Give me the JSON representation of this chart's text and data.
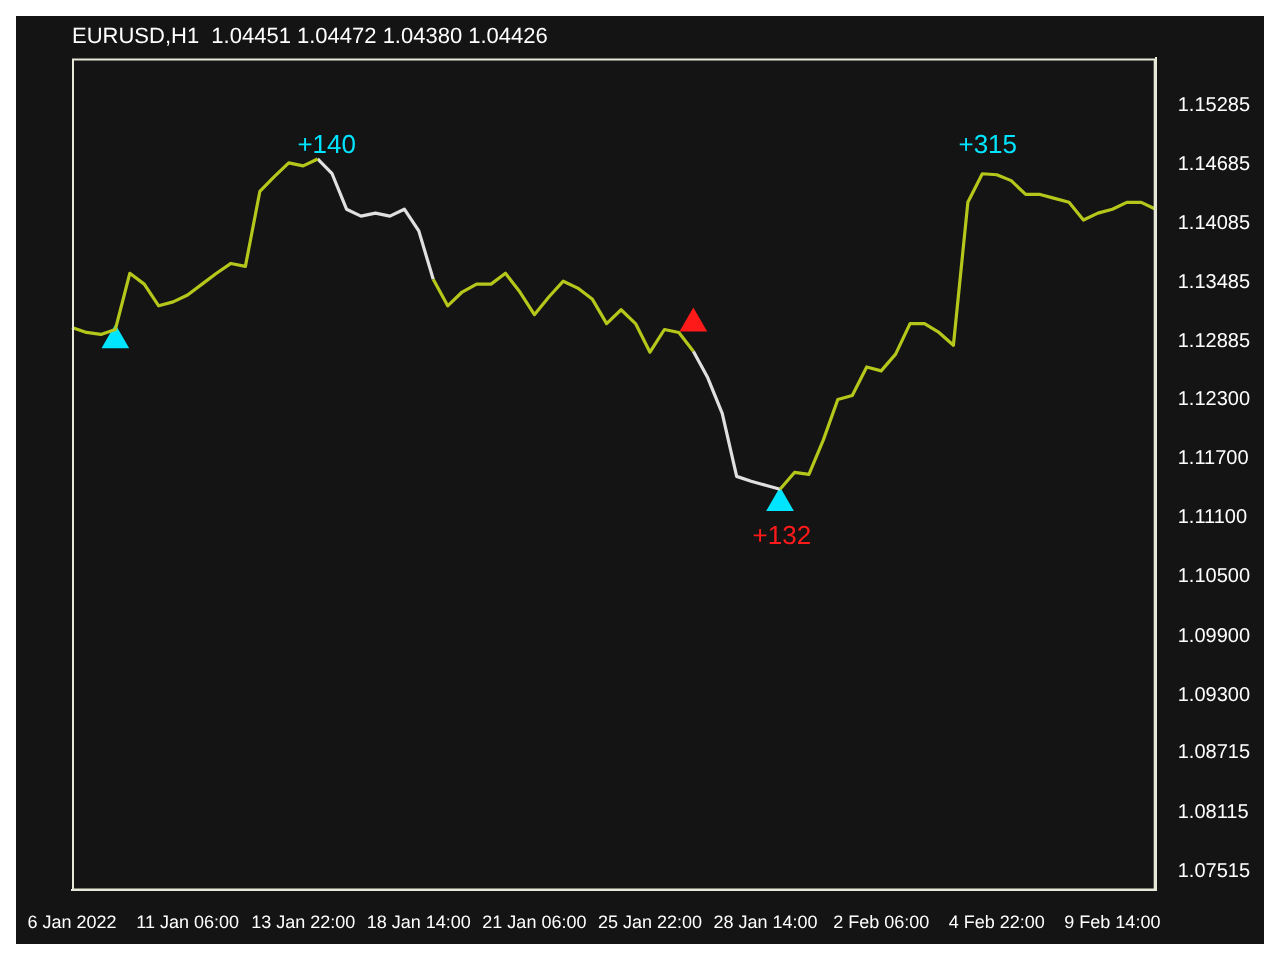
{
  "chart_data": {
    "type": "line",
    "title": "EURUSD,H1  1.04451 1.04472 1.04380 1.04426",
    "categories": [
      "6 Jan 2022",
      null,
      null,
      null,
      null,
      null,
      null,
      null,
      "11 Jan 06:00",
      null,
      null,
      null,
      null,
      null,
      null,
      null,
      "13 Jan 22:00",
      null,
      null,
      null,
      null,
      null,
      null,
      null,
      "18 Jan 14:00",
      null,
      null,
      null,
      null,
      null,
      null,
      null,
      "21 Jan 06:00",
      null,
      null,
      null,
      null,
      null,
      null,
      null,
      "25 Jan 22:00",
      null,
      null,
      null,
      null,
      null,
      null,
      null,
      "28 Jan 14:00",
      null,
      null,
      null,
      null,
      null,
      null,
      null,
      "2 Feb 06:00",
      null,
      null,
      null,
      null,
      null,
      null,
      null,
      "4 Feb 22:00",
      null,
      null,
      null,
      null,
      null,
      null,
      null,
      "9 Feb 14:00",
      null,
      null,
      null
    ],
    "series": [
      {
        "color": "#b5c71a",
        "values": [
          1.1303,
          1.1298,
          1.1296,
          1.1301,
          1.1358,
          1.1347,
          1.1325,
          1.1329,
          1.1336,
          1.1347,
          1.1358,
          1.1368,
          1.1365,
          1.1441,
          1.1456,
          1.147,
          1.1467,
          1.1474,
          null,
          null,
          null,
          null,
          null,
          null,
          null,
          1.1352,
          1.1325,
          1.1339,
          1.1347,
          1.1347,
          1.1358,
          1.1339,
          1.1316,
          1.1334,
          1.135,
          1.1343,
          1.1332,
          1.1307,
          1.1321,
          1.1307,
          1.1278,
          1.1301,
          1.1298,
          1.1279,
          null,
          null,
          null,
          null,
          null,
          1.1139,
          1.1156,
          1.1154,
          1.1189,
          1.123,
          1.1234,
          1.1263,
          1.1259,
          1.1276,
          1.1307,
          1.1307,
          1.1298,
          1.1285,
          1.143,
          1.1459,
          1.1458,
          1.1452,
          1.1438,
          1.1438,
          1.1434,
          1.143,
          1.1412,
          1.1419,
          1.1423,
          1.143,
          1.143,
          1.1423
        ]
      },
      {
        "color": "#e0e0e0",
        "values": [
          null,
          null,
          null,
          null,
          null,
          null,
          null,
          null,
          null,
          null,
          null,
          null,
          null,
          null,
          null,
          null,
          null,
          1.1474,
          1.1459,
          1.1423,
          1.1416,
          1.1419,
          1.1416,
          1.1423,
          1.1401,
          1.1352,
          null,
          null,
          null,
          null,
          null,
          null,
          null,
          null,
          null,
          null,
          null,
          null,
          null,
          null,
          null,
          null,
          null,
          1.1279,
          1.1252,
          1.1216,
          1.1152,
          1.1147,
          1.1143,
          1.1139,
          null,
          null,
          null,
          null,
          null,
          null,
          null,
          null,
          null,
          null,
          null,
          null,
          null,
          null,
          null,
          null,
          null,
          null,
          null,
          null,
          null,
          null,
          null,
          null,
          null,
          null
        ]
      },
      {
        "type": "scatter",
        "marker": "triangle",
        "color": "#00e5ff",
        "values": [
          null,
          null,
          null,
          1.129,
          null,
          null,
          null,
          null,
          null,
          null,
          null,
          null,
          null,
          null,
          null,
          null,
          null,
          null,
          null,
          null,
          null,
          null,
          null,
          null,
          null,
          null,
          null,
          null,
          null,
          null,
          null,
          null,
          null,
          null,
          null,
          null,
          null,
          null,
          null,
          null,
          null,
          null,
          null,
          null,
          null,
          null,
          null,
          null,
          null,
          1.1125,
          null,
          null,
          null,
          null,
          null,
          null,
          null,
          null,
          null,
          null,
          null,
          null,
          null,
          null,
          null,
          null,
          null,
          null,
          null,
          null,
          null,
          null,
          null,
          null,
          null,
          null
        ]
      },
      {
        "type": "scatter",
        "marker": "triangle",
        "color": "#ff1a1a",
        "values": [
          null,
          null,
          null,
          null,
          null,
          null,
          null,
          null,
          null,
          null,
          null,
          null,
          null,
          null,
          null,
          null,
          null,
          null,
          null,
          null,
          null,
          null,
          null,
          null,
          null,
          null,
          null,
          null,
          null,
          null,
          null,
          null,
          null,
          null,
          null,
          null,
          null,
          null,
          null,
          null,
          null,
          null,
          null,
          1.1307,
          null,
          null,
          null,
          null,
          null,
          null,
          null,
          null,
          null,
          null,
          null,
          null,
          null,
          null,
          null,
          null,
          null,
          null,
          null,
          null,
          null,
          null,
          null,
          null,
          null,
          null,
          null,
          null,
          null,
          null,
          null,
          null
        ]
      }
    ],
    "annotations": [
      "+140",
      "+315",
      "+132"
    ],
    "marker": "none",
    "ylim": [
      1.0732,
      1.1576
    ],
    "yticks": [
      {
        "value": 1.15285,
        "label": "1.15285"
      },
      {
        "value": 1.14685,
        "label": "1.14685"
      },
      {
        "value": 1.14085,
        "label": "1.14085"
      },
      {
        "value": 1.13485,
        "label": "1.13485"
      },
      {
        "value": 1.12885,
        "label": "1.12885"
      },
      {
        "value": 1.123,
        "label": "1.12300"
      },
      {
        "value": 1.117,
        "label": "1.11700"
      },
      {
        "value": 1.111,
        "label": "1.11100"
      },
      {
        "value": 1.105,
        "label": "1.10500"
      },
      {
        "value": 1.099,
        "label": "1.09900"
      },
      {
        "value": 1.093,
        "label": "1.09300"
      },
      {
        "value": 1.08715,
        "label": "1.08715"
      },
      {
        "value": 1.08115,
        "label": "1.08115"
      },
      {
        "value": 1.07515,
        "label": "1.07515"
      }
    ],
    "grid": false,
    "legend": false
  }
}
